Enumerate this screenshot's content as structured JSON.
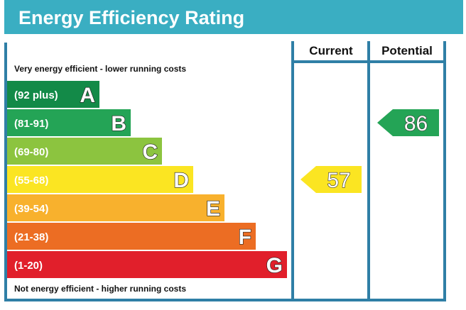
{
  "title": "Energy Efficiency Rating",
  "top_note": "Very energy efficient - lower running costs",
  "bottom_note": "Not energy efficient - higher running costs",
  "columns": {
    "current": "Current",
    "potential": "Potential"
  },
  "colors": {
    "title_bar": "#3aaec2",
    "frame": "#2f7fa6",
    "band_A": "#138a48",
    "band_B": "#24a456",
    "band_C": "#8cc43f",
    "band_D": "#fbe522",
    "band_E": "#f8b12d",
    "band_F": "#ec6d23",
    "band_G": "#e11f2b"
  },
  "chart_data": {
    "type": "bar",
    "bands": [
      {
        "letter": "A",
        "range": "(92 plus)",
        "min": 92,
        "max": 100,
        "color": "#138a48"
      },
      {
        "letter": "B",
        "range": "(81-91)",
        "min": 81,
        "max": 91,
        "color": "#24a456"
      },
      {
        "letter": "C",
        "range": "(69-80)",
        "min": 69,
        "max": 80,
        "color": "#8cc43f"
      },
      {
        "letter": "D",
        "range": "(55-68)",
        "min": 55,
        "max": 68,
        "color": "#fbe522"
      },
      {
        "letter": "E",
        "range": "(39-54)",
        "min": 39,
        "max": 54,
        "color": "#f8b12d"
      },
      {
        "letter": "F",
        "range": "(21-38)",
        "min": 21,
        "max": 38,
        "color": "#ec6d23"
      },
      {
        "letter": "G",
        "range": "(1-20)",
        "min": 1,
        "max": 20,
        "color": "#e11f2b"
      }
    ],
    "ratings": [
      {
        "label": "Current",
        "value": "57",
        "band": "D",
        "color": "#fbe522"
      },
      {
        "label": "Potential",
        "value": "86",
        "band": "B",
        "color": "#24a456"
      }
    ]
  }
}
